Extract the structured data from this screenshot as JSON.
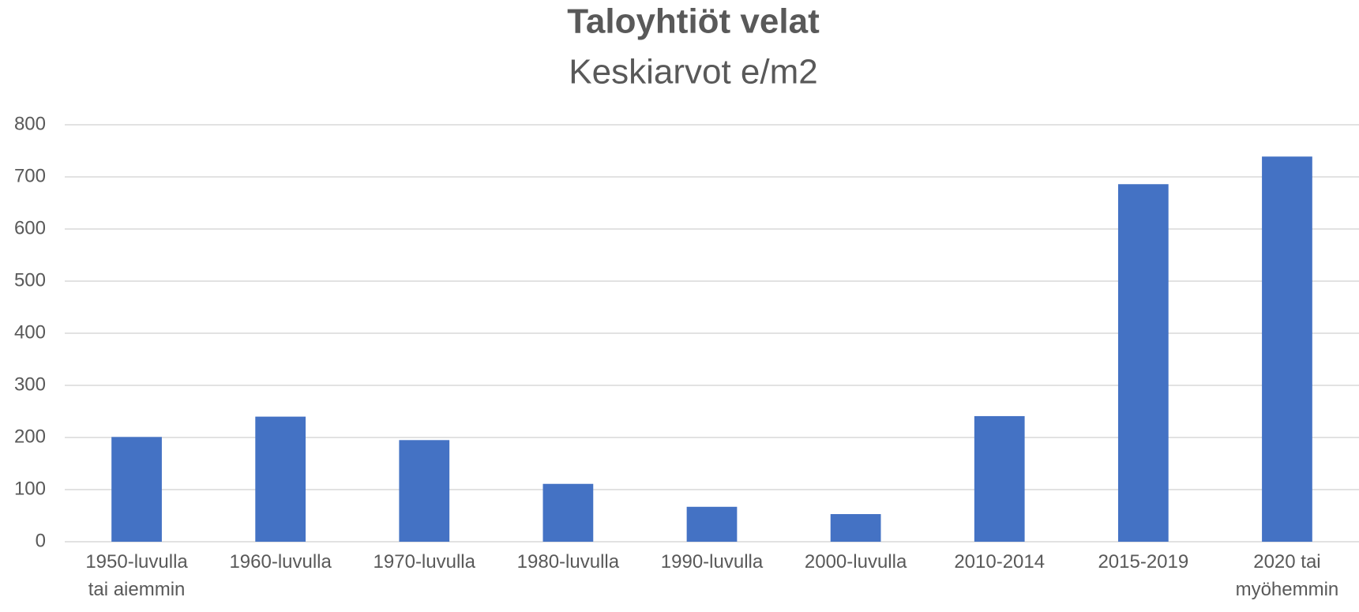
{
  "chart_data": {
    "type": "bar",
    "title": "Taloyhtiöt velat",
    "subtitle": "Keskiarvot e/m2",
    "categories": [
      "1950-luvulla tai aiemmin",
      "1960-luvulla",
      "1970-luvulla",
      "1980-luvulla",
      "1990-luvulla",
      "2000-luvulla",
      "2010-2014",
      "2015-2019",
      "2020 tai myöhemmin"
    ],
    "values": [
      201,
      240,
      195,
      111,
      67,
      53,
      241,
      686,
      739
    ],
    "color": "#4472c4",
    "ylim": [
      0,
      800
    ],
    "yticks": [
      0,
      100,
      200,
      300,
      400,
      500,
      600,
      700,
      800
    ],
    "grid": true
  }
}
